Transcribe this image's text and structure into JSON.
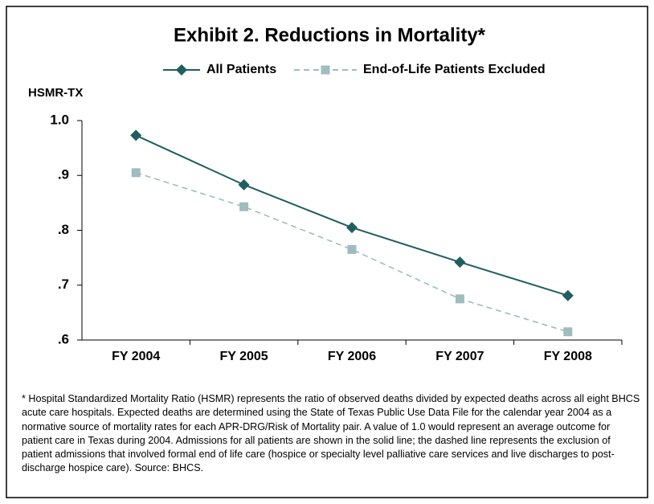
{
  "chart_data": {
    "type": "line",
    "title": "Exhibit 2. Reductions in Mortality*",
    "y_label": "HSMR-TX",
    "categories": [
      "FY 2004",
      "FY 2005",
      "FY 2006",
      "FY 2007",
      "FY 2008"
    ],
    "series": [
      {
        "name": "All Patients",
        "color": "#1f5f5f",
        "values": [
          0.973,
          0.883,
          0.805,
          0.742,
          0.681
        ]
      },
      {
        "name": "End-of-Life Patients Excluded",
        "color": "#9fbcbf",
        "values": [
          0.905,
          0.843,
          0.765,
          0.675,
          0.615
        ]
      }
    ],
    "ylim": [
      0.6,
      1.0
    ],
    "yticks": [
      {
        "value": 0.6,
        "label": ".6"
      },
      {
        "value": 0.7,
        "label": ".7"
      },
      {
        "value": 0.8,
        "label": ".8"
      },
      {
        "value": 0.9,
        "label": ".9"
      },
      {
        "value": 1.0,
        "label": "1.0"
      }
    ],
    "grid": false,
    "note": "* Hospital Standardized Mortality Ratio (HSMR) represents the ratio of observed deaths divided by expected deaths across all eight BHCS acute care hospitals. Expected deaths are determined using the State of Texas Public Use Data File for the calendar year 2004 as a normative source of mortality rates for each APR-DRG/Risk of Mortality pair. A value of 1.0 would represent an average outcome for patient care in Texas during 2004. Admissions for all patients are shown in the solid line; the dashed line represents the exclusion of patient admissions that involved formal end of life care (hospice or specialty level palliative care services and live discharges to post-discharge hospice care). Source: BHCS."
  }
}
